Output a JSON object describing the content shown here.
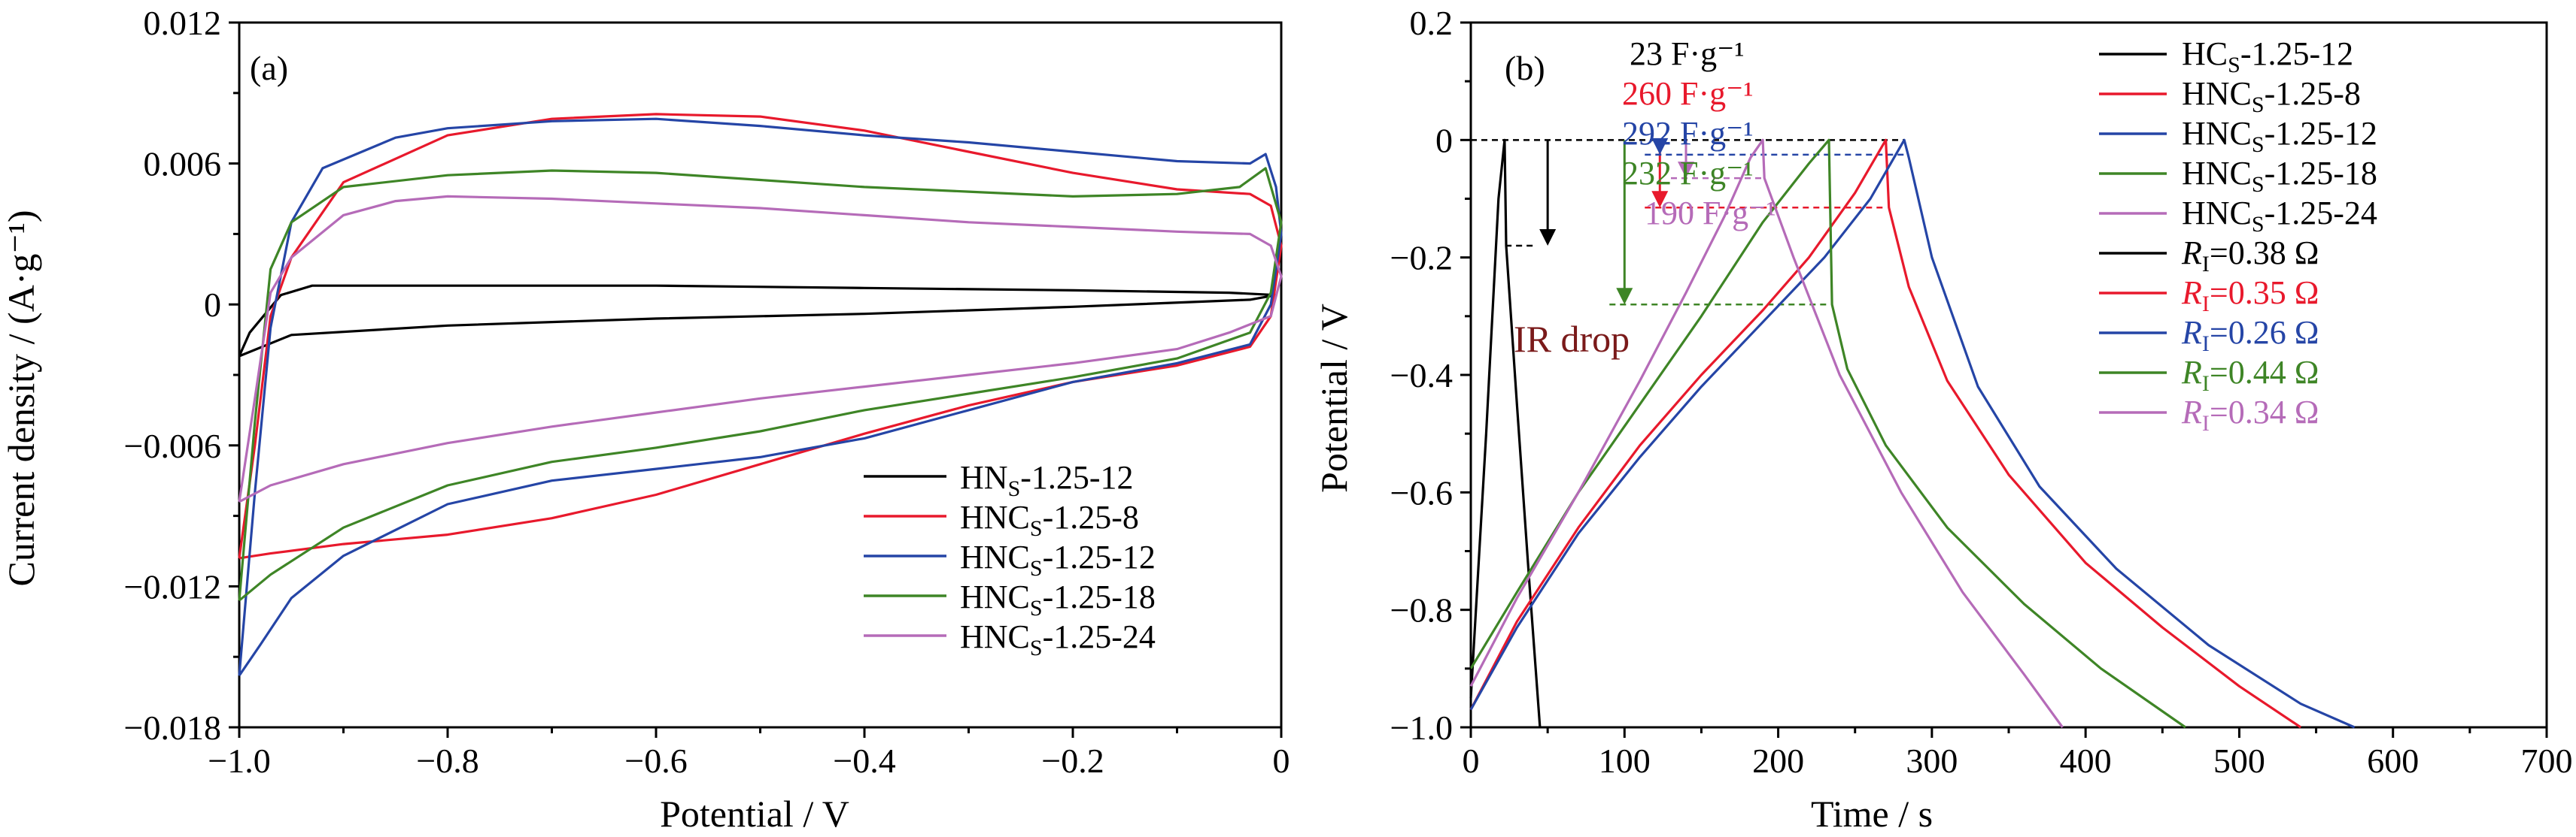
{
  "chart_data": [
    {
      "panel": "(a)",
      "type": "line",
      "xlabel": "Potential / V",
      "ylabel": "Current density / (A·g⁻¹)",
      "xlim": [
        -1.0,
        0.0
      ],
      "ylim": [
        -0.018,
        0.012
      ],
      "xticks": [
        -1.0,
        -0.8,
        -0.6,
        -0.4,
        -0.2,
        0.0
      ],
      "xtick_labels": [
        "−1.0",
        "−0.8",
        "−0.6",
        "−0.4",
        "−0.2",
        "0"
      ],
      "yticks": [
        -0.018,
        -0.012,
        -0.006,
        0,
        0.006,
        0.012
      ],
      "ytick_labels": [
        "−0.018",
        "−0.012",
        "−0.006",
        "0",
        "0.006",
        "0.012"
      ],
      "grid": false,
      "legend_position": "bottom-right",
      "series": [
        {
          "name": "HN",
          "name_sub": "S",
          "name_suffix": "-1.25-12",
          "color": "#000000",
          "points": [
            [
              -1.0,
              -0.0022
            ],
            [
              -0.99,
              -0.0012
            ],
            [
              -0.96,
              0.0004
            ],
            [
              -0.93,
              0.0008
            ],
            [
              -0.8,
              0.0008
            ],
            [
              -0.6,
              0.0008
            ],
            [
              -0.4,
              0.0007
            ],
            [
              -0.2,
              0.0006
            ],
            [
              -0.05,
              0.0005
            ],
            [
              -0.005,
              0.0004
            ],
            [
              -0.03,
              0.0002
            ],
            [
              -0.2,
              -0.0001
            ],
            [
              -0.4,
              -0.0004
            ],
            [
              -0.6,
              -0.0006
            ],
            [
              -0.8,
              -0.0009
            ],
            [
              -0.95,
              -0.0013
            ],
            [
              -1.0,
              -0.0022
            ]
          ]
        },
        {
          "name": "HNC",
          "name_sub": "S",
          "name_suffix": "-1.25-8",
          "color": "#e8192c",
          "points": [
            [
              -1.0,
              -0.0108
            ],
            [
              -0.985,
              -0.006
            ],
            [
              -0.97,
              -0.0005
            ],
            [
              -0.95,
              0.002
            ],
            [
              -0.9,
              0.0052
            ],
            [
              -0.8,
              0.0072
            ],
            [
              -0.7,
              0.0079
            ],
            [
              -0.6,
              0.0081
            ],
            [
              -0.5,
              0.008
            ],
            [
              -0.4,
              0.0074
            ],
            [
              -0.3,
              0.0065
            ],
            [
              -0.2,
              0.0056
            ],
            [
              -0.1,
              0.0049
            ],
            [
              -0.03,
              0.0047
            ],
            [
              -0.01,
              0.0042
            ],
            [
              0.0,
              0.0025
            ],
            [
              -0.01,
              -0.0005
            ],
            [
              -0.03,
              -0.0018
            ],
            [
              -0.1,
              -0.0026
            ],
            [
              -0.2,
              -0.0033
            ],
            [
              -0.3,
              -0.0043
            ],
            [
              -0.4,
              -0.0055
            ],
            [
              -0.5,
              -0.0068
            ],
            [
              -0.6,
              -0.0081
            ],
            [
              -0.7,
              -0.0091
            ],
            [
              -0.8,
              -0.0098
            ],
            [
              -0.9,
              -0.0102
            ],
            [
              -0.97,
              -0.0106
            ],
            [
              -1.0,
              -0.0108
            ]
          ]
        },
        {
          "name": "HNC",
          "name_sub": "S",
          "name_suffix": "-1.25-12",
          "color": "#2545a6",
          "points": [
            [
              -1.0,
              -0.0158
            ],
            [
              -0.985,
              -0.008
            ],
            [
              -0.97,
              -0.001
            ],
            [
              -0.95,
              0.0035
            ],
            [
              -0.92,
              0.0058
            ],
            [
              -0.85,
              0.0071
            ],
            [
              -0.8,
              0.0075
            ],
            [
              -0.7,
              0.0078
            ],
            [
              -0.6,
              0.0079
            ],
            [
              -0.5,
              0.0076
            ],
            [
              -0.4,
              0.0072
            ],
            [
              -0.3,
              0.0069
            ],
            [
              -0.2,
              0.0065
            ],
            [
              -0.1,
              0.0061
            ],
            [
              -0.03,
              0.006
            ],
            [
              -0.015,
              0.0064
            ],
            [
              -0.005,
              0.005
            ],
            [
              0.0,
              0.003
            ],
            [
              -0.01,
              0.0
            ],
            [
              -0.03,
              -0.0017
            ],
            [
              -0.1,
              -0.0025
            ],
            [
              -0.2,
              -0.0033
            ],
            [
              -0.3,
              -0.0045
            ],
            [
              -0.4,
              -0.0057
            ],
            [
              -0.5,
              -0.0065
            ],
            [
              -0.6,
              -0.007
            ],
            [
              -0.7,
              -0.0075
            ],
            [
              -0.8,
              -0.0085
            ],
            [
              -0.9,
              -0.0107
            ],
            [
              -0.95,
              -0.0125
            ],
            [
              -0.98,
              -0.0145
            ],
            [
              -1.0,
              -0.0158
            ]
          ]
        },
        {
          "name": "HNC",
          "name_sub": "S",
          "name_suffix": "-1.25-18",
          "color": "#3e8526",
          "points": [
            [
              -1.0,
              -0.0126
            ],
            [
              -0.985,
              -0.005
            ],
            [
              -0.97,
              0.0015
            ],
            [
              -0.95,
              0.0035
            ],
            [
              -0.9,
              0.005
            ],
            [
              -0.8,
              0.0055
            ],
            [
              -0.7,
              0.0057
            ],
            [
              -0.6,
              0.0056
            ],
            [
              -0.5,
              0.0053
            ],
            [
              -0.4,
              0.005
            ],
            [
              -0.3,
              0.0048
            ],
            [
              -0.2,
              0.0046
            ],
            [
              -0.1,
              0.0047
            ],
            [
              -0.04,
              0.005
            ],
            [
              -0.015,
              0.0058
            ],
            [
              0.0,
              0.0035
            ],
            [
              -0.01,
              0.0005
            ],
            [
              -0.03,
              -0.0012
            ],
            [
              -0.1,
              -0.0023
            ],
            [
              -0.2,
              -0.0031
            ],
            [
              -0.3,
              -0.0038
            ],
            [
              -0.4,
              -0.0045
            ],
            [
              -0.5,
              -0.0054
            ],
            [
              -0.6,
              -0.0061
            ],
            [
              -0.7,
              -0.0067
            ],
            [
              -0.8,
              -0.0077
            ],
            [
              -0.9,
              -0.0095
            ],
            [
              -0.97,
              -0.0115
            ],
            [
              -1.0,
              -0.0126
            ]
          ]
        },
        {
          "name": "HNC",
          "name_sub": "S",
          "name_suffix": "-1.25-24",
          "color": "#b56bb8",
          "points": [
            [
              -1.0,
              -0.0084
            ],
            [
              -0.985,
              -0.004
            ],
            [
              -0.97,
              0.0005
            ],
            [
              -0.95,
              0.002
            ],
            [
              -0.9,
              0.0038
            ],
            [
              -0.85,
              0.0044
            ],
            [
              -0.8,
              0.0046
            ],
            [
              -0.7,
              0.0045
            ],
            [
              -0.6,
              0.0043
            ],
            [
              -0.5,
              0.0041
            ],
            [
              -0.4,
              0.0038
            ],
            [
              -0.3,
              0.0035
            ],
            [
              -0.2,
              0.0033
            ],
            [
              -0.1,
              0.0031
            ],
            [
              -0.03,
              0.003
            ],
            [
              -0.01,
              0.0025
            ],
            [
              0.0,
              0.0012
            ],
            [
              -0.01,
              -0.0005
            ],
            [
              -0.05,
              -0.0012
            ],
            [
              -0.1,
              -0.0019
            ],
            [
              -0.2,
              -0.0025
            ],
            [
              -0.3,
              -0.003
            ],
            [
              -0.4,
              -0.0035
            ],
            [
              -0.5,
              -0.004
            ],
            [
              -0.6,
              -0.0046
            ],
            [
              -0.7,
              -0.0052
            ],
            [
              -0.8,
              -0.0059
            ],
            [
              -0.9,
              -0.0068
            ],
            [
              -0.97,
              -0.0077
            ],
            [
              -1.0,
              -0.0084
            ]
          ]
        }
      ]
    },
    {
      "panel": "(b)",
      "type": "line",
      "xlabel": "Time / s",
      "ylabel": "Potential / V",
      "xlim": [
        0,
        700
      ],
      "ylim": [
        -1.0,
        0.2
      ],
      "xticks": [
        0,
        100,
        200,
        300,
        400,
        500,
        600,
        700
      ],
      "xtick_labels": [
        "0",
        "100",
        "200",
        "300",
        "400",
        "500",
        "600",
        "700"
      ],
      "yticks": [
        -1.0,
        -0.8,
        -0.6,
        -0.4,
        -0.2,
        0,
        0.2
      ],
      "ytick_labels": [
        "−1.0",
        "−0.8",
        "−0.6",
        "−0.4",
        "−0.2",
        "0",
        "0.2"
      ],
      "grid": false,
      "legend_position": "top-right",
      "annotation": "IR drop",
      "annotation_color": "#7a1a1a",
      "series": [
        {
          "name": "HC",
          "name_sub": "S",
          "name_suffix": "-1.25-12",
          "color": "#000000",
          "capacitance": "23 F·g⁻¹",
          "ir_drop": "0.38 Ω",
          "ir_drop_x": 50,
          "ir_drop_y": -0.18,
          "points": [
            [
              0,
              -0.95
            ],
            [
              10,
              -0.5
            ],
            [
              18,
              -0.1
            ],
            [
              22,
              0.0
            ],
            [
              23,
              -0.18
            ],
            [
              30,
              -0.45
            ],
            [
              38,
              -0.75
            ],
            [
              45,
              -1.0
            ]
          ]
        },
        {
          "name": "HNC",
          "name_sub": "S",
          "name_suffix": "-1.25-8",
          "color": "#e8192c",
          "capacitance": "260 F·g⁻¹",
          "ir_drop": "0.35 Ω",
          "ir_drop_x": 123,
          "ir_drop_y": -0.115,
          "points": [
            [
              0,
              -0.97
            ],
            [
              30,
              -0.82
            ],
            [
              70,
              -0.66
            ],
            [
              110,
              -0.52
            ],
            [
              150,
              -0.4
            ],
            [
              190,
              -0.29
            ],
            [
              220,
              -0.2
            ],
            [
              250,
              -0.09
            ],
            [
              270,
              0.0
            ],
            [
              272,
              -0.115
            ],
            [
              285,
              -0.25
            ],
            [
              310,
              -0.41
            ],
            [
              350,
              -0.57
            ],
            [
              400,
              -0.72
            ],
            [
              450,
              -0.83
            ],
            [
              500,
              -0.93
            ],
            [
              540,
              -1.0
            ]
          ]
        },
        {
          "name": "HNC",
          "name_sub": "S",
          "name_suffix": "-1.25-12",
          "color": "#2545a6",
          "capacitance": "292 F·g⁻¹",
          "ir_drop": "0.26 Ω",
          "ir_drop_x": 123,
          "ir_drop_y": -0.025,
          "points": [
            [
              0,
              -0.97
            ],
            [
              30,
              -0.83
            ],
            [
              70,
              -0.67
            ],
            [
              110,
              -0.54
            ],
            [
              150,
              -0.42
            ],
            [
              190,
              -0.31
            ],
            [
              230,
              -0.2
            ],
            [
              260,
              -0.1
            ],
            [
              282,
              0.0
            ],
            [
              285,
              -0.03
            ],
            [
              300,
              -0.2
            ],
            [
              330,
              -0.42
            ],
            [
              370,
              -0.59
            ],
            [
              420,
              -0.73
            ],
            [
              480,
              -0.86
            ],
            [
              540,
              -0.96
            ],
            [
              575,
              -1.0
            ]
          ]
        },
        {
          "name": "HNC",
          "name_sub": "S",
          "name_suffix": "-1.25-18",
          "color": "#3e8526",
          "capacitance": "232 F·g⁻¹",
          "ir_drop": "0.44 Ω",
          "ir_drop_x": 100,
          "ir_drop_y": -0.28,
          "points": [
            [
              0,
              -0.9
            ],
            [
              30,
              -0.77
            ],
            [
              70,
              -0.6
            ],
            [
              110,
              -0.45
            ],
            [
              150,
              -0.3
            ],
            [
              190,
              -0.14
            ],
            [
              220,
              -0.04
            ],
            [
              233,
              0.0
            ],
            [
              235,
              -0.28
            ],
            [
              245,
              -0.39
            ],
            [
              270,
              -0.52
            ],
            [
              310,
              -0.66
            ],
            [
              360,
              -0.79
            ],
            [
              410,
              -0.9
            ],
            [
              465,
              -1.0
            ]
          ]
        },
        {
          "name": "HNC",
          "name_sub": "S",
          "name_suffix": "-1.25-24",
          "color": "#b56bb8",
          "capacitance": "190 F·g⁻¹",
          "ir_drop": "0.34 Ω",
          "ir_drop_x": 140,
          "ir_drop_y": -0.065,
          "points": [
            [
              0,
              -0.93
            ],
            [
              30,
              -0.78
            ],
            [
              70,
              -0.6
            ],
            [
              110,
              -0.41
            ],
            [
              140,
              -0.26
            ],
            [
              165,
              -0.13
            ],
            [
              182,
              -0.03
            ],
            [
              190,
              0.0
            ],
            [
              191,
              -0.065
            ],
            [
              210,
              -0.2
            ],
            [
              240,
              -0.4
            ],
            [
              280,
              -0.6
            ],
            [
              320,
              -0.77
            ],
            [
              360,
              -0.91
            ],
            [
              385,
              -1.0
            ]
          ]
        }
      ]
    }
  ]
}
